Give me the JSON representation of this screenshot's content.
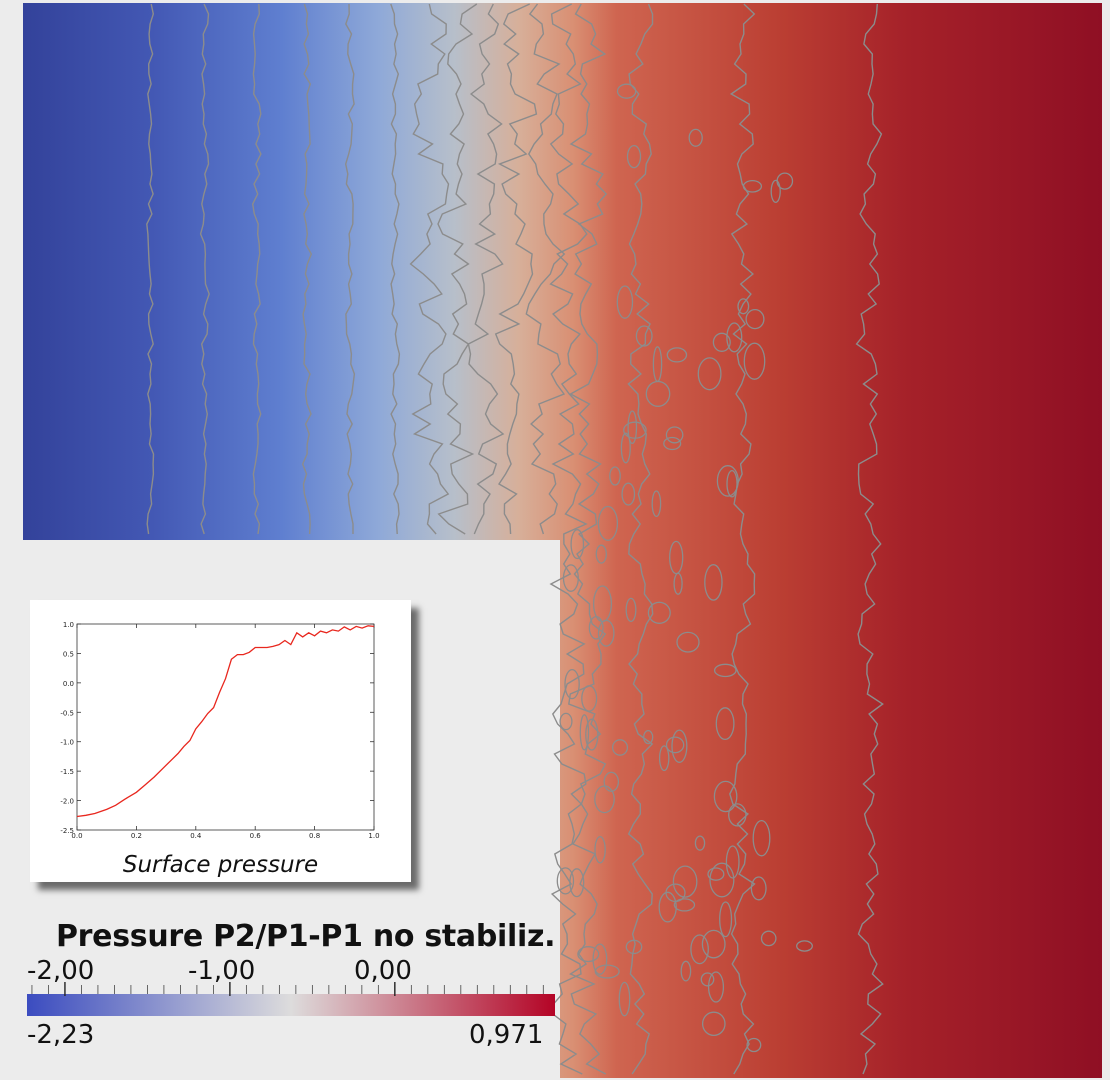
{
  "chart_data": [
    {
      "type": "heatmap",
      "title": "Pressure P2/P1-P1 no stabiliz.",
      "colormap": "cool-to-warm",
      "colors": [
        "#3b4cc0",
        "#dddcdc",
        "#b40426"
      ],
      "range": [
        -2.23,
        0.971
      ],
      "range_labels": {
        "min": "-2,23",
        "max": "0,971"
      },
      "tick_labels": [
        "-2,00",
        "-1,00",
        "0,00"
      ],
      "tick_values": [
        -2.0,
        -1.0,
        0.0
      ],
      "contour_line_color": "#8c8c8c"
    },
    {
      "type": "line",
      "caption": "Surface pressure",
      "x_ticks": [
        "0.0",
        "0.2",
        "0.4",
        "0.6",
        "0.8",
        "1.0"
      ],
      "y_ticks": [
        "1.0",
        "0.5",
        "0.0",
        "-0.5",
        "-1.0",
        "-1.5",
        "-2.0",
        "-2.5"
      ],
      "xlim": [
        0,
        1
      ],
      "ylim": [
        -2.5,
        1.0
      ],
      "line_color": "#e8271e",
      "series": [
        {
          "x": [
            0.0,
            0.03,
            0.06,
            0.1,
            0.13,
            0.16,
            0.2,
            0.23,
            0.26,
            0.29,
            0.32,
            0.34,
            0.36,
            0.38,
            0.4,
            0.42,
            0.44,
            0.46,
            0.48,
            0.5,
            0.52,
            0.54,
            0.56,
            0.58,
            0.6,
            0.62,
            0.64,
            0.66,
            0.68,
            0.7,
            0.72,
            0.74,
            0.76,
            0.78,
            0.8,
            0.82,
            0.84,
            0.86,
            0.88,
            0.9,
            0.92,
            0.94,
            0.96,
            0.98,
            1.0
          ],
          "y": [
            -2.27,
            -2.25,
            -2.22,
            -2.15,
            -2.08,
            -1.98,
            -1.86,
            -1.73,
            -1.6,
            -1.45,
            -1.3,
            -1.2,
            -1.08,
            -0.98,
            -0.78,
            -0.66,
            -0.52,
            -0.42,
            -0.16,
            0.07,
            0.4,
            0.48,
            0.48,
            0.52,
            0.6,
            0.6,
            0.6,
            0.62,
            0.65,
            0.72,
            0.65,
            0.85,
            0.78,
            0.85,
            0.8,
            0.88,
            0.85,
            0.9,
            0.88,
            0.95,
            0.9,
            0.96,
            0.93,
            0.97,
            0.96
          ]
        }
      ]
    }
  ]
}
